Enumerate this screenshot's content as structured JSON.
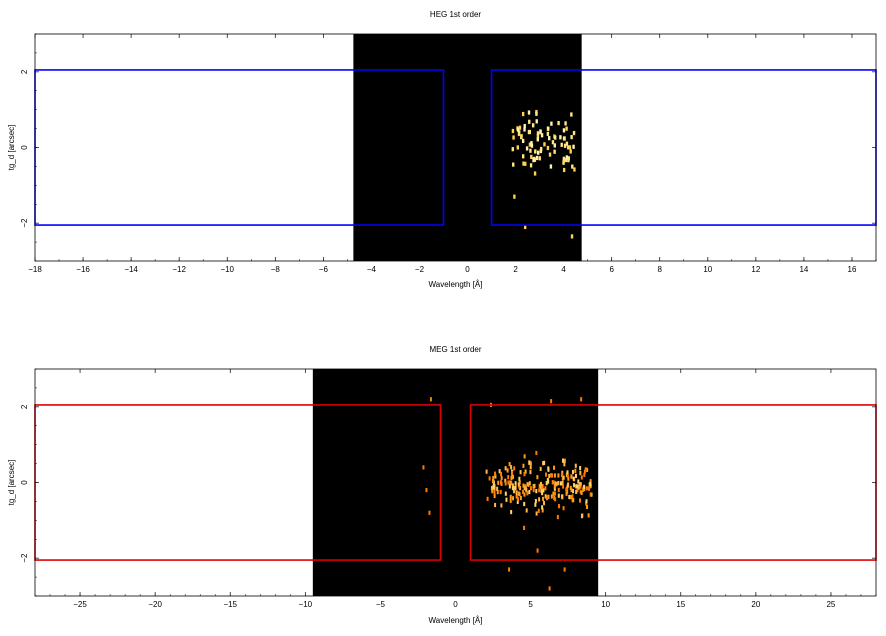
{
  "chart_data": [
    {
      "type": "heatmap",
      "title": "HEG 1st order",
      "xlabel": "Wavelength [Å]",
      "ylabel": "tg_d [arcsec]",
      "xlim": [
        -18,
        17
      ],
      "ylim": [
        -3,
        3
      ],
      "xticks": [
        -18,
        -16,
        -14,
        -12,
        -10,
        -8,
        -6,
        -4,
        -2,
        0,
        2,
        4,
        6,
        8,
        10,
        12,
        14,
        16
      ],
      "yticks": [
        -2,
        0,
        2
      ],
      "image_extent_x": [
        -4.75,
        4.75
      ],
      "image_background": "#000000",
      "region_color": "#0000ff",
      "regions": [
        {
          "x": [
            -18,
            -1
          ],
          "y": [
            -2.05,
            2.05
          ]
        },
        {
          "x": [
            1,
            17
          ],
          "y": [
            -2.05,
            2.05
          ]
        }
      ],
      "event_cluster": {
        "x_range": [
          1.8,
          4.4
        ],
        "y_range": [
          -0.8,
          1.4
        ],
        "count": 90,
        "colors": [
          "#ffd24a",
          "#ffe680",
          "#fff2b0"
        ]
      },
      "outliers": [
        [
          2.35,
          -2.1
        ],
        [
          4.3,
          -2.35
        ],
        [
          1.9,
          -1.3
        ],
        [
          2.2,
          0.3
        ]
      ]
    },
    {
      "type": "heatmap",
      "title": "MEG 1st order",
      "xlabel": "Wavelength [Å]",
      "ylabel": "tg_d [arcsec]",
      "xlim": [
        -28,
        28
      ],
      "ylim": [
        -3,
        3
      ],
      "xticks": [
        -25,
        -20,
        -15,
        -10,
        -5,
        0,
        5,
        10,
        15,
        20,
        25
      ],
      "yticks": [
        -2,
        0,
        2
      ],
      "image_extent_x": [
        -9.5,
        9.5
      ],
      "image_background": "#000000",
      "region_color": "#dd0000",
      "regions": [
        {
          "x": [
            -28,
            -1
          ],
          "y": [
            -2.05,
            2.05
          ]
        },
        {
          "x": [
            1,
            28
          ],
          "y": [
            -2.05,
            2.05
          ]
        }
      ],
      "event_cluster": {
        "x_range": [
          2.0,
          9.0
        ],
        "y_range": [
          -0.9,
          0.9
        ],
        "count": 240,
        "colors": [
          "#ff7a00",
          "#ff9a1a",
          "#ffb84a",
          "#ffd56a"
        ]
      },
      "outliers": [
        [
          -2.2,
          0.4
        ],
        [
          -2.0,
          -0.2
        ],
        [
          -1.8,
          -0.8
        ],
        [
          -1.7,
          2.2
        ],
        [
          2.3,
          2.05
        ],
        [
          6.3,
          2.15
        ],
        [
          8.3,
          2.2
        ],
        [
          3.5,
          -2.3
        ],
        [
          7.2,
          -2.3
        ],
        [
          5.4,
          -1.8
        ],
        [
          4.5,
          -1.2
        ],
        [
          6.2,
          -2.8
        ]
      ]
    }
  ]
}
